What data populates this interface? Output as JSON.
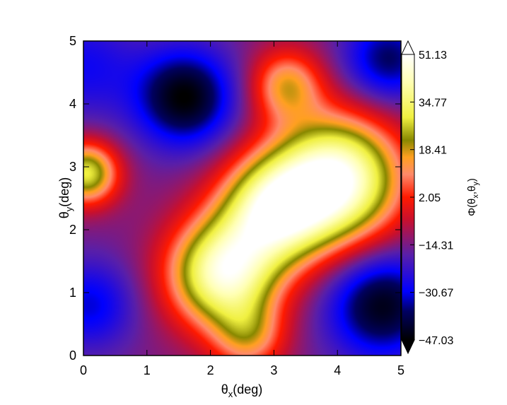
{
  "chart_data": {
    "type": "heatmap",
    "title": "",
    "x_label_main": "θ",
    "x_label_sub": "x",
    "x_label_tail": "(deg)",
    "y_label_main": "θ",
    "y_label_sub": "y",
    "y_label_tail": "(deg)",
    "colorbar_label_parts": [
      "Φ(θ",
      "x",
      ",θ",
      "y",
      ")"
    ],
    "xlim": [
      0,
      5
    ],
    "ylim": [
      0,
      5
    ],
    "x_ticks": [
      "0",
      "1",
      "2",
      "3",
      "4",
      "5"
    ],
    "y_ticks": [
      "0",
      "1",
      "2",
      "3",
      "4",
      "5"
    ],
    "colorbar_range": [
      -47.03,
      51.13
    ],
    "colorbar_ticks": [
      "51.13",
      "34.77",
      "18.41",
      "2.05",
      "−14.31",
      "−30.67",
      "−47.03"
    ],
    "colormap": [
      [
        0.0,
        "#000000"
      ],
      [
        0.1,
        "#000060"
      ],
      [
        0.17,
        "#0000ff"
      ],
      [
        0.3,
        "#5a1fa8"
      ],
      [
        0.42,
        "#c8102e"
      ],
      [
        0.5,
        "#ff1a00"
      ],
      [
        0.58,
        "#ff8a6a"
      ],
      [
        0.64,
        "#ffa020"
      ],
      [
        0.7,
        "#888800"
      ],
      [
        0.78,
        "#f0f040"
      ],
      [
        0.9,
        "#ffffb0"
      ],
      [
        1.0,
        "#ffffff"
      ]
    ],
    "field_features": [
      {
        "x": 1.6,
        "y": 4.1,
        "value": -47,
        "sigma": 0.55
      },
      {
        "x": 4.7,
        "y": 0.8,
        "value": -45,
        "sigma": 0.6
      },
      {
        "x": 4.8,
        "y": 4.7,
        "value": -38,
        "sigma": 0.5
      },
      {
        "x": 0.1,
        "y": 0.8,
        "value": -32,
        "sigma": 0.5
      },
      {
        "x": 0.0,
        "y": 4.6,
        "value": -28,
        "sigma": 0.6
      },
      {
        "x": 2.6,
        "y": 0.3,
        "value": 10,
        "sigma": 0.4
      },
      {
        "x": 4.0,
        "y": 2.8,
        "value": 50,
        "sigma": 0.7
      },
      {
        "x": 3.0,
        "y": 2.3,
        "value": 40,
        "sigma": 0.6
      },
      {
        "x": 2.2,
        "y": 1.3,
        "value": 44,
        "sigma": 0.6
      },
      {
        "x": 0.05,
        "y": 2.9,
        "value": 30,
        "sigma": 0.35
      },
      {
        "x": 3.2,
        "y": 4.3,
        "value": 15,
        "sigma": 0.4
      }
    ]
  }
}
